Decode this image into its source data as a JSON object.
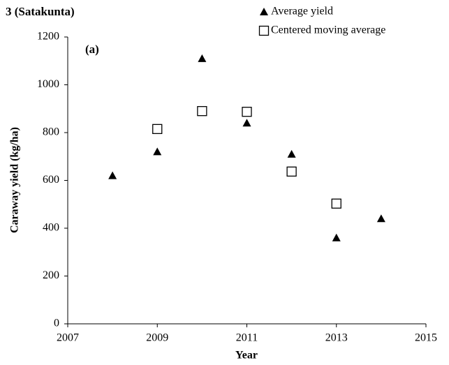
{
  "chart_data": {
    "type": "scatter",
    "title": "3 (Satakunta)",
    "annotation": "(a)",
    "x_label": "Year",
    "y_label": "Caraway yield (kg/ha)",
    "xlim": [
      2007,
      2015
    ],
    "xticks": [
      2007,
      2009,
      2011,
      2013,
      2015
    ],
    "ylim": [
      0,
      1200
    ],
    "yticks": [
      0,
      200,
      400,
      600,
      800,
      1000,
      1200
    ],
    "legend": "top-right",
    "series": [
      {
        "name": "Average yield",
        "marker": "triangle",
        "color": "#000000",
        "x": [
          2008,
          2009,
          2010,
          2011,
          2012,
          2013,
          2014
        ],
        "values": [
          620,
          720,
          1110,
          840,
          710,
          360,
          440
        ]
      },
      {
        "name": "Centered moving average",
        "marker": "square",
        "color": "#000000",
        "x": [
          2009,
          2010,
          2011,
          2012,
          2013
        ],
        "values": [
          815,
          890,
          887,
          637,
          503
        ]
      }
    ]
  }
}
